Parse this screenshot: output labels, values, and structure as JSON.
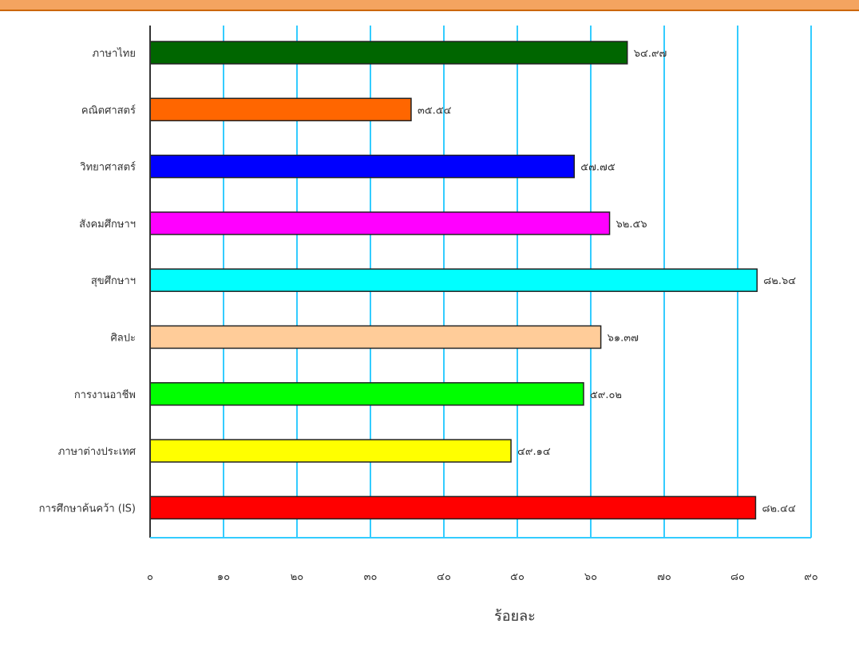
{
  "chart_data": {
    "type": "bar",
    "orientation": "horizontal",
    "categories": [
      "ภาษาไทย",
      "คณิตศาสตร์",
      "วิทยาศาสตร์",
      "สังคมศึกษาฯ",
      "สุขศึกษาฯ",
      "ศิลปะ",
      "การงานอาชีพ",
      "ภาษาต่างประเทศ",
      "การศึกษาค้นคว้า (IS)"
    ],
    "values": [
      64.97,
      35.54,
      57.75,
      62.56,
      82.64,
      61.37,
      59.02,
      49.14,
      82.44
    ],
    "data_labels": [
      "๖๔.๙๗",
      "๓๕.๕๔",
      "๕๗.๗๕",
      "๖๒.๕๖",
      "๘๒.๖๔",
      "๖๑.๓๗",
      "๕๙.๐๒",
      "๔๙.๑๔",
      "๘๒.๔๔"
    ],
    "colors": [
      "#006600",
      "#ff6600",
      "#0000ff",
      "#ff00ff",
      "#00ffff",
      "#ffcc99",
      "#00ff00",
      "#ffff00",
      "#ff0000"
    ],
    "xlim": [
      0,
      90
    ],
    "x_ticks": [
      0,
      10,
      20,
      30,
      40,
      50,
      60,
      70,
      80,
      90
    ],
    "x_tick_labels": [
      "๐",
      "๑๐",
      "๒๐",
      "๓๐",
      "๔๐",
      "๕๐",
      "๖๐",
      "๗๐",
      "๘๐",
      "๙๐"
    ],
    "xlabel": "ร้อยละ",
    "ylabel": "",
    "title": "",
    "grid": true,
    "grid_color": "#33ccff",
    "legend": false
  },
  "header_band_color": "#f4a460"
}
